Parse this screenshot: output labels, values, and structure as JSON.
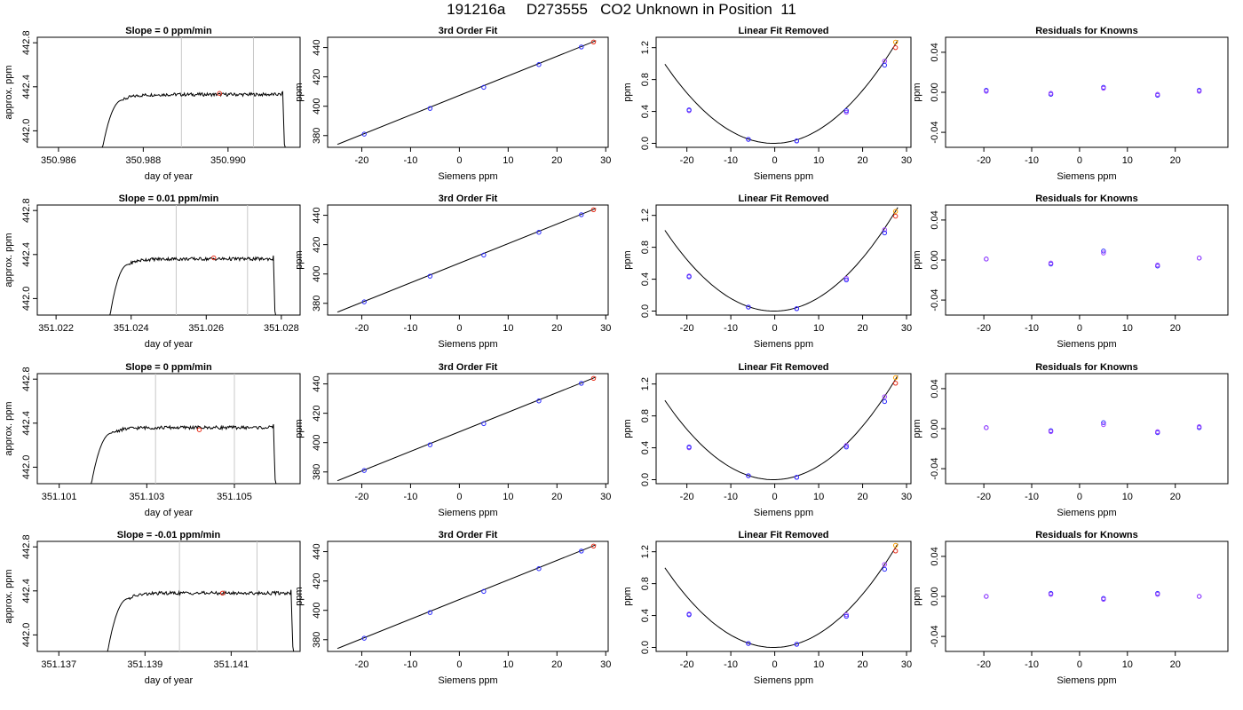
{
  "page_title": "191216a     D273555   CO2 Unknown in Position  11",
  "colors": {
    "trace": "#000000",
    "ref_line": "#c8c8c8",
    "unknown": "#e8301c",
    "known": "#2a2aff",
    "known_alt": "#a040ff",
    "unknown_alt": "#ffa000",
    "fit_line": "#000000"
  },
  "chart_data": [
    {
      "type": "line",
      "panel": "timeseries",
      "row": 1,
      "title": "Slope =  0  ppm/min",
      "xlabel": "day of year",
      "ylabel": "approx. ppm",
      "xticks": [
        "350.986",
        "350.988",
        "350.990"
      ],
      "xtick_values": [
        350.986,
        350.988,
        350.99
      ],
      "xlim": [
        350.9855,
        350.9917
      ],
      "yticks": [
        "442.0",
        "442.4",
        "442.8"
      ],
      "ytick_values": [
        442.0,
        442.4,
        442.8
      ],
      "ylim": [
        441.85,
        442.85
      ],
      "vlines": [
        350.9889,
        350.9906
      ],
      "trace_start": 350.98695,
      "trace_end": 350.99135,
      "plateau": 442.33,
      "unknown_point": [
        350.9898,
        442.34
      ]
    },
    {
      "type": "line",
      "panel": "fit",
      "row": 1,
      "title": "3rd Order Fit",
      "xlabel": "Siemens ppm",
      "ylabel": "ppm",
      "xticks": [
        "-20",
        "-10",
        "0",
        "10",
        "20",
        "30"
      ],
      "xtick_values": [
        -20,
        -10,
        0,
        10,
        20,
        30
      ],
      "xlim": [
        -27,
        30.5
      ],
      "yticks": [
        "380",
        "400",
        "420",
        "440"
      ],
      "ytick_values": [
        380,
        400,
        420,
        440
      ],
      "ylim": [
        372,
        447
      ],
      "line": [
        [
          -25,
          374
        ],
        [
          28,
          444.7
        ]
      ],
      "knowns": [
        [
          -19.5,
          381
        ],
        [
          -6,
          398.5
        ],
        [
          5,
          412.9
        ],
        [
          16.3,
          428.4
        ],
        [
          25,
          440.4
        ]
      ],
      "unknown": [
        27.5,
        443.8
      ]
    },
    {
      "type": "scatter",
      "panel": "linear_removed",
      "row": 1,
      "title": "Linear Fit Removed",
      "xlabel": "Siemens ppm",
      "ylabel": "ppm",
      "xticks": [
        "-20",
        "-10",
        "0",
        "10",
        "20",
        "30"
      ],
      "xtick_values": [
        -20,
        -10,
        0,
        10,
        20,
        30
      ],
      "xlim": [
        -27,
        31
      ],
      "yticks": [
        "0.0",
        "0.4",
        "0.8",
        "1.2"
      ],
      "ytick_values": [
        0,
        0.4,
        0.8,
        1.2
      ],
      "ylim": [
        -0.05,
        1.33
      ],
      "curve_a": 0.00162,
      "curve_b": 0.0008,
      "curve_range": [
        -25,
        28
      ],
      "knowns": [
        [
          -19.5,
          0.42
        ],
        [
          -6,
          0.05
        ],
        [
          5,
          0.03
        ],
        [
          16.3,
          0.41
        ],
        [
          25,
          0.98
        ]
      ],
      "knowns_alt": [
        [
          -19.5,
          0.41
        ],
        [
          -6,
          0.05
        ],
        [
          5,
          0.03
        ],
        [
          16.3,
          0.39
        ],
        [
          25,
          1.03
        ]
      ],
      "unknown": [
        27.5,
        1.2
      ],
      "unknown_alt": [
        27.5,
        1.27
      ]
    },
    {
      "type": "scatter",
      "panel": "residuals",
      "row": 1,
      "title": "Residuals for Knowns",
      "xlabel": "Siemens ppm",
      "ylabel": "ppm",
      "xticks": [
        "-20",
        "-10",
        "0",
        "10",
        "20"
      ],
      "xtick_values": [
        -20,
        -10,
        0,
        10,
        20
      ],
      "xlim": [
        -28,
        31
      ],
      "yticks": [
        "-0.04",
        "0.00",
        "0.04"
      ],
      "ytick_values": [
        -0.04,
        0,
        0.04
      ],
      "ylim": [
        -0.055,
        0.055
      ],
      "points": [
        [
          -19.5,
          0.002
        ],
        [
          -6,
          -0.002
        ],
        [
          5,
          0.005
        ],
        [
          16.3,
          -0.003
        ],
        [
          25,
          0.002
        ]
      ],
      "points_alt": [
        [
          -19.5,
          0.001
        ],
        [
          -6,
          -0.001
        ],
        [
          5,
          0.004
        ],
        [
          16.3,
          -0.002
        ],
        [
          25,
          0.001
        ]
      ]
    },
    {
      "type": "line",
      "panel": "timeseries",
      "row": 2,
      "title": "Slope =  0.01  ppm/min",
      "xlabel": "day of year",
      "ylabel": "approx. ppm",
      "xticks": [
        "351.022",
        "351.024",
        "351.026",
        "351.028"
      ],
      "xtick_values": [
        351.022,
        351.024,
        351.026,
        351.028
      ],
      "xlim": [
        351.0215,
        351.0285
      ],
      "yticks": [
        "442.0",
        "442.4",
        "442.8"
      ],
      "ytick_values": [
        442.0,
        442.4,
        442.8
      ],
      "ylim": [
        441.85,
        442.85
      ],
      "vlines": [
        351.0252,
        351.0271
      ],
      "trace_start": 351.02335,
      "trace_end": 351.02785,
      "plateau": 442.36,
      "unknown_point": [
        351.0262,
        442.37
      ]
    },
    {
      "type": "line",
      "panel": "fit",
      "row": 2,
      "title": "3rd Order Fit",
      "xlabel": "Siemens ppm",
      "ylabel": "ppm",
      "xticks": [
        "-20",
        "-10",
        "0",
        "10",
        "20",
        "30"
      ],
      "xtick_values": [
        -20,
        -10,
        0,
        10,
        20,
        30
      ],
      "xlim": [
        -27,
        30.5
      ],
      "yticks": [
        "380",
        "400",
        "420",
        "440"
      ],
      "ytick_values": [
        380,
        400,
        420,
        440
      ],
      "ylim": [
        372,
        447
      ],
      "line": [
        [
          -25,
          374
        ],
        [
          28,
          444.7
        ]
      ],
      "knowns": [
        [
          -19.5,
          381
        ],
        [
          -6,
          398.5
        ],
        [
          5,
          412.9
        ],
        [
          16.3,
          428.4
        ],
        [
          25,
          440.4
        ]
      ],
      "unknown": [
        27.5,
        443.8
      ]
    },
    {
      "type": "scatter",
      "panel": "linear_removed",
      "row": 2,
      "title": "Linear Fit Removed",
      "xlabel": "Siemens ppm",
      "ylabel": "ppm",
      "xticks": [
        "-20",
        "-10",
        "0",
        "10",
        "20",
        "30"
      ],
      "xtick_values": [
        -20,
        -10,
        0,
        10,
        20,
        30
      ],
      "xlim": [
        -27,
        31
      ],
      "yticks": [
        "0.0",
        "0.4",
        "0.8",
        "1.2"
      ],
      "ytick_values": [
        0,
        0.4,
        0.8,
        1.2
      ],
      "ylim": [
        -0.05,
        1.33
      ],
      "curve_a": 0.00164,
      "curve_b": 0.0005,
      "curve_range": [
        -25,
        28
      ],
      "knowns": [
        [
          -19.5,
          0.43
        ],
        [
          -6,
          0.05
        ],
        [
          5,
          0.03
        ],
        [
          16.3,
          0.39
        ],
        [
          25,
          0.98
        ]
      ],
      "knowns_alt": [
        [
          -19.5,
          0.44
        ],
        [
          -6,
          0.05
        ],
        [
          5,
          0.03
        ],
        [
          16.3,
          0.41
        ],
        [
          25,
          1.02
        ]
      ],
      "unknown": [
        27.5,
        1.19
      ],
      "unknown_alt": [
        27.5,
        1.25
      ]
    },
    {
      "type": "scatter",
      "panel": "residuals",
      "row": 2,
      "title": "Residuals for Knowns",
      "xlabel": "Siemens ppm",
      "ylabel": "ppm",
      "xticks": [
        "-20",
        "-10",
        "0",
        "10",
        "20"
      ],
      "xtick_values": [
        -20,
        -10,
        0,
        10,
        20
      ],
      "xlim": [
        -28,
        31
      ],
      "yticks": [
        "-0.04",
        "0.00",
        "0.04"
      ],
      "ytick_values": [
        -0.04,
        0,
        0.04
      ],
      "ylim": [
        -0.055,
        0.055
      ],
      "points": [
        [
          -19.5,
          0.001
        ],
        [
          -6,
          -0.004
        ],
        [
          5,
          0.009
        ],
        [
          16.3,
          -0.006
        ],
        [
          25,
          0.002
        ]
      ],
      "points_alt": [
        [
          -19.5,
          0.001
        ],
        [
          -6,
          -0.003
        ],
        [
          5,
          0.007
        ],
        [
          16.3,
          -0.005
        ],
        [
          25,
          0.002
        ]
      ]
    },
    {
      "type": "line",
      "panel": "timeseries",
      "row": 3,
      "title": "Slope =  0  ppm/min",
      "xlabel": "day of year",
      "ylabel": "approx. ppm",
      "xticks": [
        "351.101",
        "351.103",
        "351.105"
      ],
      "xtick_values": [
        351.101,
        351.103,
        351.105
      ],
      "xlim": [
        351.1005,
        351.1065
      ],
      "yticks": [
        "442.0",
        "442.4",
        "442.8"
      ],
      "ytick_values": [
        442.0,
        442.4,
        442.8
      ],
      "ylim": [
        441.85,
        442.85
      ],
      "vlines": [
        351.1032,
        351.105
      ],
      "trace_start": 351.10165,
      "trace_end": 351.10595,
      "plateau": 442.36,
      "unknown_point": [
        351.1042,
        442.34
      ]
    },
    {
      "type": "line",
      "panel": "fit",
      "row": 3,
      "title": "3rd Order Fit",
      "xlabel": "Siemens ppm",
      "ylabel": "ppm",
      "xticks": [
        "-20",
        "-10",
        "0",
        "10",
        "20",
        "30"
      ],
      "xtick_values": [
        -20,
        -10,
        0,
        10,
        20,
        30
      ],
      "xlim": [
        -27,
        30.5
      ],
      "yticks": [
        "380",
        "400",
        "420",
        "440"
      ],
      "ytick_values": [
        380,
        400,
        420,
        440
      ],
      "ylim": [
        372,
        447
      ],
      "line": [
        [
          -25,
          374
        ],
        [
          28,
          444.7
        ]
      ],
      "knowns": [
        [
          -19.5,
          381
        ],
        [
          -6,
          398.5
        ],
        [
          5,
          412.9
        ],
        [
          16.3,
          428.4
        ],
        [
          25,
          440.4
        ]
      ],
      "unknown": [
        27.5,
        443.8
      ]
    },
    {
      "type": "scatter",
      "panel": "linear_removed",
      "row": 3,
      "title": "Linear Fit Removed",
      "xlabel": "Siemens ppm",
      "ylabel": "ppm",
      "xticks": [
        "-20",
        "-10",
        "0",
        "10",
        "20",
        "30"
      ],
      "xtick_values": [
        -20,
        -10,
        0,
        10,
        20,
        30
      ],
      "xlim": [
        -27,
        31
      ],
      "yticks": [
        "0.0",
        "0.4",
        "0.8",
        "1.2"
      ],
      "ytick_values": [
        0,
        0.4,
        0.8,
        1.2
      ],
      "ylim": [
        -0.05,
        1.33
      ],
      "curve_a": 0.00163,
      "curve_b": 0.001,
      "curve_range": [
        -25,
        28
      ],
      "knowns": [
        [
          -19.5,
          0.41
        ],
        [
          -6,
          0.05
        ],
        [
          5,
          0.03
        ],
        [
          16.3,
          0.41
        ],
        [
          25,
          0.98
        ]
      ],
      "knowns_alt": [
        [
          -19.5,
          0.4
        ],
        [
          -6,
          0.05
        ],
        [
          5,
          0.03
        ],
        [
          16.3,
          0.43
        ],
        [
          25,
          1.04
        ]
      ],
      "unknown": [
        27.5,
        1.21
      ],
      "unknown_alt": [
        27.5,
        1.28
      ]
    },
    {
      "type": "scatter",
      "panel": "residuals",
      "row": 3,
      "title": "Residuals for Knowns",
      "xlabel": "Siemens ppm",
      "ylabel": "ppm",
      "xticks": [
        "-20",
        "-10",
        "0",
        "10",
        "20"
      ],
      "xtick_values": [
        -20,
        -10,
        0,
        10,
        20
      ],
      "xlim": [
        -28,
        31
      ],
      "yticks": [
        "-0.04",
        "0.00",
        "0.04"
      ],
      "ytick_values": [
        -0.04,
        0,
        0.04
      ],
      "ylim": [
        -0.055,
        0.055
      ],
      "points": [
        [
          -19.5,
          0.001
        ],
        [
          -6,
          -0.002
        ],
        [
          5,
          0.006
        ],
        [
          16.3,
          -0.004
        ],
        [
          25,
          0.001
        ]
      ],
      "points_alt": [
        [
          -19.5,
          0.001
        ],
        [
          -6,
          -0.003
        ],
        [
          5,
          0.004
        ],
        [
          16.3,
          -0.003
        ],
        [
          25,
          0.002
        ]
      ]
    },
    {
      "type": "line",
      "panel": "timeseries",
      "row": 4,
      "title": "Slope =  -0.01  ppm/min",
      "xlabel": "day of year",
      "ylabel": "approx. ppm",
      "xticks": [
        "351.137",
        "351.139",
        "351.141"
      ],
      "xtick_values": [
        351.137,
        351.139,
        351.141
      ],
      "xlim": [
        351.1365,
        351.1426
      ],
      "yticks": [
        "442.0",
        "442.4",
        "442.8"
      ],
      "ytick_values": [
        442.0,
        442.4,
        442.8
      ],
      "ylim": [
        441.85,
        442.85
      ],
      "vlines": [
        351.1398,
        351.1416
      ],
      "trace_start": 351.13805,
      "trace_end": 351.14245,
      "plateau": 442.38,
      "unknown_point": [
        351.1408,
        442.38
      ]
    },
    {
      "type": "line",
      "panel": "fit",
      "row": 4,
      "title": "3rd Order Fit",
      "xlabel": "Siemens ppm",
      "ylabel": "ppm",
      "xticks": [
        "-20",
        "-10",
        "0",
        "10",
        "20",
        "30"
      ],
      "xtick_values": [
        -20,
        -10,
        0,
        10,
        20,
        30
      ],
      "xlim": [
        -27,
        30.5
      ],
      "yticks": [
        "380",
        "400",
        "420",
        "440"
      ],
      "ytick_values": [
        380,
        400,
        420,
        440
      ],
      "ylim": [
        372,
        447
      ],
      "line": [
        [
          -25,
          374
        ],
        [
          28,
          444.7
        ]
      ],
      "knowns": [
        [
          -19.5,
          381
        ],
        [
          -6,
          398.5
        ],
        [
          5,
          412.9
        ],
        [
          16.3,
          428.4
        ],
        [
          25,
          440.4
        ]
      ],
      "unknown": [
        27.5,
        443.8
      ]
    },
    {
      "type": "scatter",
      "panel": "linear_removed",
      "row": 4,
      "title": "Linear Fit Removed",
      "xlabel": "Siemens ppm",
      "ylabel": "ppm",
      "xticks": [
        "-20",
        "-10",
        "0",
        "10",
        "20",
        "30"
      ],
      "xtick_values": [
        -20,
        -10,
        0,
        10,
        20,
        30
      ],
      "xlim": [
        -27,
        31
      ],
      "yticks": [
        "0.0",
        "0.4",
        "0.8",
        "1.2"
      ],
      "ytick_values": [
        0,
        0.4,
        0.8,
        1.2
      ],
      "ylim": [
        -0.05,
        1.33
      ],
      "curve_a": 0.00163,
      "curve_b": 0.0008,
      "curve_range": [
        -25,
        28
      ],
      "knowns": [
        [
          -19.5,
          0.41
        ],
        [
          -6,
          0.05
        ],
        [
          5,
          0.04
        ],
        [
          16.3,
          0.39
        ],
        [
          25,
          0.98
        ]
      ],
      "knowns_alt": [
        [
          -19.5,
          0.42
        ],
        [
          -6,
          0.05
        ],
        [
          5,
          0.04
        ],
        [
          16.3,
          0.41
        ],
        [
          25,
          1.04
        ]
      ],
      "unknown": [
        27.5,
        1.21
      ],
      "unknown_alt": [
        27.5,
        1.28
      ]
    },
    {
      "type": "scatter",
      "panel": "residuals",
      "row": 4,
      "title": "Residuals for Knowns",
      "xlabel": "Siemens ppm",
      "ylabel": "ppm",
      "xticks": [
        "-20",
        "-10",
        "0",
        "10",
        "20"
      ],
      "xtick_values": [
        -20,
        -10,
        0,
        10,
        20
      ],
      "xlim": [
        -28,
        31
      ],
      "yticks": [
        "-0.04",
        "0.00",
        "0.04"
      ],
      "ytick_values": [
        -0.04,
        0,
        0.04
      ],
      "ylim": [
        -0.055,
        0.055
      ],
      "points": [
        [
          -19.5,
          0
        ],
        [
          -6,
          0.003
        ],
        [
          5,
          -0.002
        ],
        [
          16.3,
          0.003
        ],
        [
          25,
          0
        ]
      ],
      "points_alt": [
        [
          -19.5,
          0
        ],
        [
          -6,
          0.002
        ],
        [
          5,
          -0.003
        ],
        [
          16.3,
          0.002
        ],
        [
          25,
          0
        ]
      ]
    }
  ]
}
